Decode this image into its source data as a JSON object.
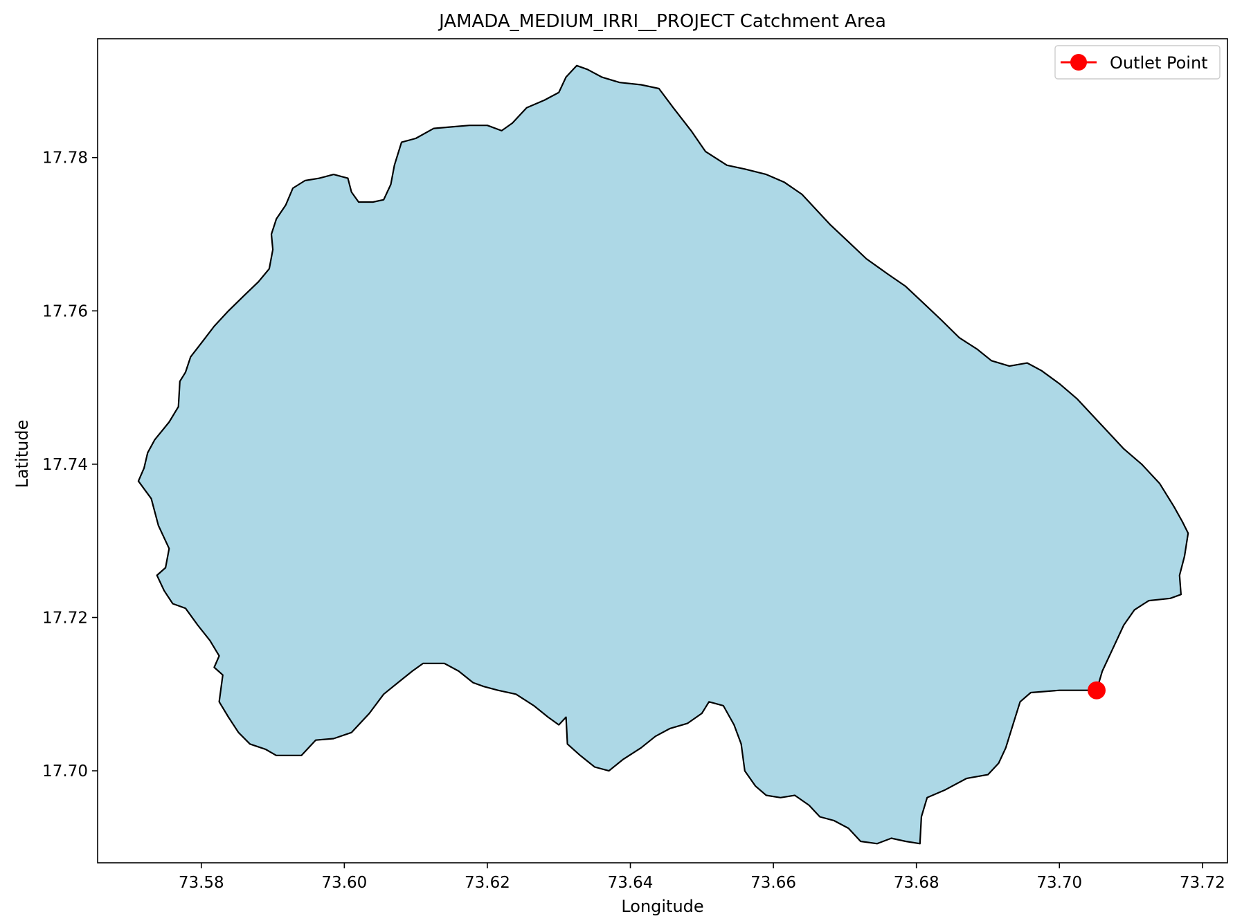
{
  "chart_data": {
    "type": "map",
    "title": "JAMADA_MEDIUM_IRRI__PROJECT Catchment Area",
    "xlabel": "Longitude",
    "ylabel": "Latitude",
    "xlim": [
      73.5655,
      73.7235
    ],
    "ylim": [
      17.688,
      17.7955
    ],
    "xticks": [
      73.58,
      73.6,
      73.62,
      73.64,
      73.66,
      73.68,
      73.7,
      73.72
    ],
    "xtick_labels": [
      "73.58",
      "73.60",
      "73.62",
      "73.64",
      "73.66",
      "73.68",
      "73.70",
      "73.72"
    ],
    "yticks": [
      17.7,
      17.72,
      17.74,
      17.76,
      17.78
    ],
    "ytick_labels": [
      "17.70",
      "17.72",
      "17.74",
      "17.76",
      "17.78"
    ],
    "grid": false,
    "legend": {
      "position": "upper right",
      "entries": [
        "Outlet Point"
      ]
    },
    "catchment": {
      "fill": "#add8e6",
      "edge": "#000000",
      "boundary": [
        [
          73.573,
          17.7355
        ],
        [
          73.574,
          17.732
        ],
        [
          73.5755,
          17.729
        ],
        [
          73.575,
          17.7265
        ],
        [
          73.5738,
          17.7255
        ],
        [
          73.5748,
          17.7235
        ],
        [
          73.576,
          17.7218
        ],
        [
          73.5778,
          17.7212
        ],
        [
          73.5795,
          17.719
        ],
        [
          73.5812,
          17.717
        ],
        [
          73.5825,
          17.715
        ],
        [
          73.5818,
          17.7135
        ],
        [
          73.583,
          17.7125
        ],
        [
          73.5825,
          17.709
        ],
        [
          73.5838,
          17.707
        ],
        [
          73.5852,
          17.705
        ],
        [
          73.5868,
          17.7035
        ],
        [
          73.589,
          17.7028
        ],
        [
          73.5905,
          17.702
        ],
        [
          73.592,
          17.702
        ],
        [
          73.594,
          17.702
        ],
        [
          73.596,
          17.704
        ],
        [
          73.5985,
          17.7042
        ],
        [
          73.601,
          17.705
        ],
        [
          73.6035,
          17.7075
        ],
        [
          73.6055,
          17.71
        ],
        [
          73.6075,
          17.7115
        ],
        [
          73.6095,
          17.713
        ],
        [
          73.611,
          17.714
        ],
        [
          73.614,
          17.714
        ],
        [
          73.616,
          17.713
        ],
        [
          73.618,
          17.7115
        ],
        [
          73.6195,
          17.711
        ],
        [
          73.6215,
          17.7105
        ],
        [
          73.624,
          17.71
        ],
        [
          73.6265,
          17.7085
        ],
        [
          73.6285,
          17.707
        ],
        [
          73.63,
          17.706
        ],
        [
          73.631,
          17.707
        ],
        [
          73.6312,
          17.7035
        ],
        [
          73.633,
          17.702
        ],
        [
          73.635,
          17.7005
        ],
        [
          73.637,
          17.7
        ],
        [
          73.639,
          17.7015
        ],
        [
          73.6415,
          17.703
        ],
        [
          73.6435,
          17.7045
        ],
        [
          73.6455,
          17.7055
        ],
        [
          73.648,
          17.7062
        ],
        [
          73.65,
          17.7075
        ],
        [
          73.651,
          17.709
        ],
        [
          73.653,
          17.7085
        ],
        [
          73.6545,
          17.706
        ],
        [
          73.6555,
          17.7035
        ],
        [
          73.656,
          17.7
        ],
        [
          73.6575,
          17.698
        ],
        [
          73.659,
          17.6968
        ],
        [
          73.661,
          17.6965
        ],
        [
          73.663,
          17.6968
        ],
        [
          73.665,
          17.6955
        ],
        [
          73.6665,
          17.694
        ],
        [
          73.6685,
          17.6935
        ],
        [
          73.6705,
          17.6925
        ],
        [
          73.6722,
          17.6908
        ],
        [
          73.6745,
          17.6905
        ],
        [
          73.6765,
          17.6912
        ],
        [
          73.6785,
          17.6908
        ],
        [
          73.6805,
          17.6905
        ],
        [
          73.6807,
          17.694
        ],
        [
          73.6815,
          17.6965
        ],
        [
          73.684,
          17.6975
        ],
        [
          73.687,
          17.699
        ],
        [
          73.69,
          17.6995
        ],
        [
          73.6915,
          17.701
        ],
        [
          73.6925,
          17.703
        ],
        [
          73.6935,
          17.706
        ],
        [
          73.6945,
          17.709
        ],
        [
          73.696,
          17.7102
        ],
        [
          73.7,
          17.7105
        ],
        [
          73.703,
          17.7105
        ],
        [
          73.7052,
          17.7105
        ],
        [
          73.706,
          17.713
        ],
        [
          73.7075,
          17.716
        ],
        [
          73.709,
          17.719
        ],
        [
          73.7105,
          17.721
        ],
        [
          73.7125,
          17.7222
        ],
        [
          73.7155,
          17.7225
        ],
        [
          73.717,
          17.723
        ],
        [
          73.7168,
          17.7255
        ],
        [
          73.7175,
          17.728
        ],
        [
          73.718,
          17.731
        ],
        [
          73.7172,
          17.7325
        ],
        [
          73.716,
          17.7345
        ],
        [
          73.714,
          17.7375
        ],
        [
          73.7115,
          17.74
        ],
        [
          73.709,
          17.742
        ],
        [
          73.7065,
          17.7445
        ],
        [
          73.7045,
          17.7465
        ],
        [
          73.7025,
          17.7485
        ],
        [
          73.7,
          17.7505
        ],
        [
          73.6975,
          17.7522
        ],
        [
          73.6955,
          17.7532
        ],
        [
          73.693,
          17.7528
        ],
        [
          73.6905,
          17.7535
        ],
        [
          73.6885,
          17.755
        ],
        [
          73.686,
          17.7565
        ],
        [
          73.6835,
          17.7588
        ],
        [
          73.681,
          17.761
        ],
        [
          73.6785,
          17.7632
        ],
        [
          73.676,
          17.7648
        ],
        [
          73.673,
          17.7668
        ],
        [
          73.6705,
          17.769
        ],
        [
          73.668,
          17.7712
        ],
        [
          73.666,
          17.7732
        ],
        [
          73.664,
          17.7752
        ],
        [
          73.6615,
          17.7768
        ],
        [
          73.659,
          17.7778
        ],
        [
          73.656,
          17.7785
        ],
        [
          73.6535,
          17.779
        ],
        [
          73.6505,
          17.7808
        ],
        [
          73.6485,
          17.7835
        ],
        [
          73.646,
          17.7865
        ],
        [
          73.644,
          17.789
        ],
        [
          73.6415,
          17.7895
        ],
        [
          73.6385,
          17.7898
        ],
        [
          73.636,
          17.7905
        ],
        [
          73.634,
          17.7915
        ],
        [
          73.6325,
          17.792
        ],
        [
          73.631,
          17.7905
        ],
        [
          73.63,
          17.7885
        ],
        [
          73.628,
          17.7875
        ],
        [
          73.6255,
          17.7865
        ],
        [
          73.6235,
          17.7845
        ],
        [
          73.622,
          17.7835
        ],
        [
          73.62,
          17.7842
        ],
        [
          73.6175,
          17.7842
        ],
        [
          73.615,
          17.784
        ],
        [
          73.6125,
          17.7838
        ],
        [
          73.61,
          17.7825
        ],
        [
          73.608,
          17.782
        ],
        [
          73.607,
          17.779
        ],
        [
          73.6065,
          17.7765
        ],
        [
          73.6055,
          17.7745
        ],
        [
          73.604,
          17.7742
        ],
        [
          73.602,
          17.7742
        ],
        [
          73.601,
          17.7755
        ],
        [
          73.6005,
          17.7773
        ],
        [
          73.5985,
          17.7778
        ],
        [
          73.5965,
          17.7773
        ],
        [
          73.5945,
          17.777
        ],
        [
          73.5928,
          17.776
        ],
        [
          73.5918,
          17.7738
        ],
        [
          73.5905,
          17.772
        ],
        [
          73.5898,
          17.77
        ],
        [
          73.59,
          17.768
        ],
        [
          73.5895,
          17.7655
        ],
        [
          73.588,
          17.7638
        ],
        [
          73.586,
          17.762
        ],
        [
          73.5838,
          17.76
        ],
        [
          73.5818,
          17.758
        ],
        [
          73.58,
          17.7558
        ],
        [
          73.5785,
          17.754
        ],
        [
          73.5778,
          17.752
        ],
        [
          73.577,
          17.7508
        ],
        [
          73.5768,
          17.7475
        ],
        [
          73.5755,
          17.7455
        ],
        [
          73.5735,
          17.7432
        ],
        [
          73.5725,
          17.7415
        ],
        [
          73.572,
          17.7395
        ],
        [
          73.5712,
          17.7378
        ]
      ]
    },
    "outlet_point": {
      "label": "Outlet Point",
      "lon": 73.7052,
      "lat": 17.7105,
      "color": "#ff0000"
    }
  }
}
